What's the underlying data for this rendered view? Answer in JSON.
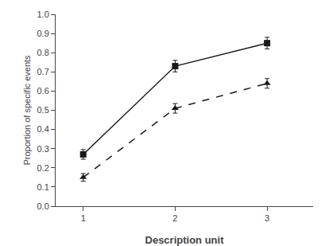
{
  "chart_data": {
    "type": "line",
    "xlabel": "Description unit",
    "ylabel": "Proportion of specific events",
    "x": [
      1,
      2,
      3
    ],
    "series": [
      {
        "color": "#1a1a1a",
        "marker": "square",
        "line_style": "solid",
        "values": [
          0.27,
          0.73,
          0.85
        ],
        "errors": [
          0.025,
          0.03,
          0.03
        ]
      },
      {
        "color": "#1a1a1a",
        "marker": "triangle-up",
        "line_style": "dashed",
        "values": [
          0.15,
          0.51,
          0.64
        ],
        "errors": [
          0.02,
          0.025,
          0.025
        ]
      }
    ],
    "xlim": [
      0.7,
      3.5
    ],
    "xticks": [
      1,
      2,
      3
    ],
    "ylim": [
      0.0,
      1.0
    ],
    "yticks": [
      {
        "value": 0.0,
        "label": "0.0"
      },
      0.1,
      0.2,
      0.3,
      0.4,
      0.5,
      0.6,
      0.7,
      0.8,
      0.9,
      {
        "value": 1.0,
        "label": "1.0"
      }
    ],
    "grid": false
  }
}
